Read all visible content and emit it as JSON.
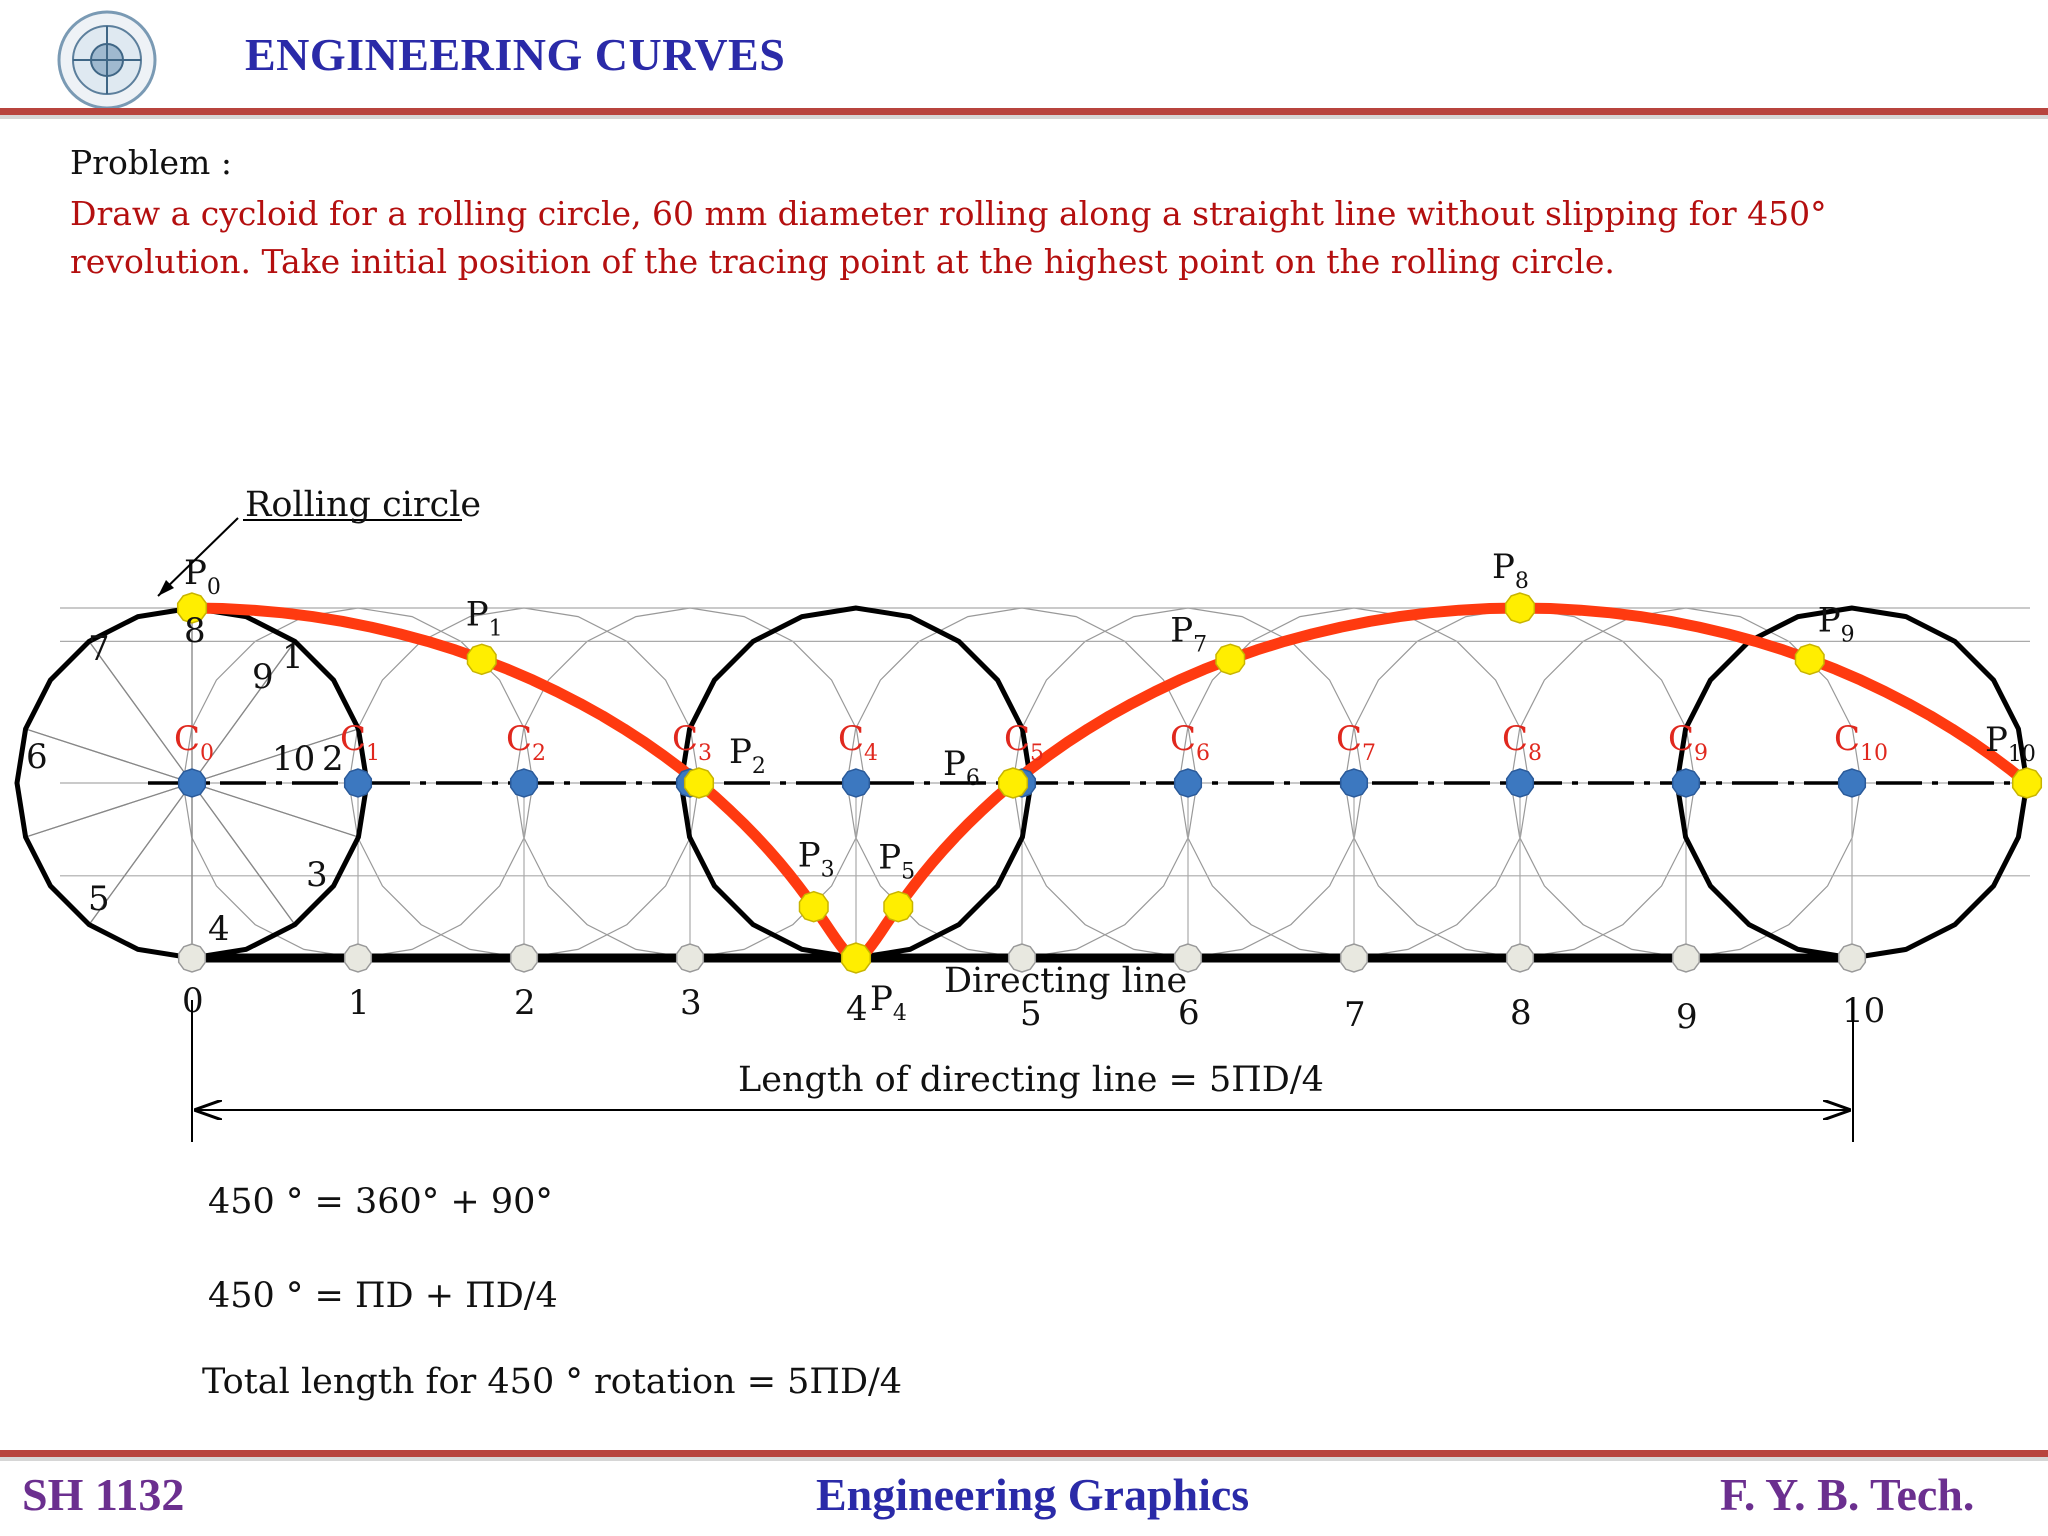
{
  "header": {
    "title": "ENGINEERING CURVES"
  },
  "problem": {
    "heading": "Problem :",
    "text": "Draw a cycloid for a rolling circle, 60 mm diameter rolling along a straight line without slipping for 450° revolution. Take initial position of the tracing point at the highest point on the rolling circle."
  },
  "diagram": {
    "rolling_circle_label": "Rolling circle",
    "directing_line_label": "Directing line",
    "length_label": "Length  of directing line = 5ΠD/4",
    "circle_division_labels": [
      "1",
      "2",
      "3",
      "4",
      "5",
      "6",
      "7",
      "8",
      "9",
      "10"
    ],
    "line_division_labels": [
      "0",
      "1",
      "2",
      "3",
      "4",
      "5",
      "6",
      "7",
      "8",
      "9",
      "10"
    ],
    "centre_labels": [
      "0",
      "1",
      "2",
      "3",
      "4",
      "5",
      "6",
      "7",
      "8",
      "9",
      "10"
    ],
    "point_labels": [
      "0",
      "1",
      "2",
      "3",
      "4",
      "5",
      "6",
      "7",
      "8",
      "9",
      "10"
    ],
    "centre_prefix": "C",
    "point_prefix": "P",
    "colors": {
      "curve": "#ff3a10",
      "centre_dot": "#3c78c0",
      "point_dot": "#ffee00",
      "base_dot": "#e8e8e0",
      "centre_label": "#e0281e"
    }
  },
  "equations": {
    "line1": "450 ° = 360° + 90°",
    "line2": "450 ° = ΠD + ΠD/4",
    "line3": "Total length for 450 ° rotation = 5ΠD/4"
  },
  "footer": {
    "left": "SH 1132",
    "center": "Engineering Graphics",
    "right": "F. Y.  B. Tech."
  }
}
